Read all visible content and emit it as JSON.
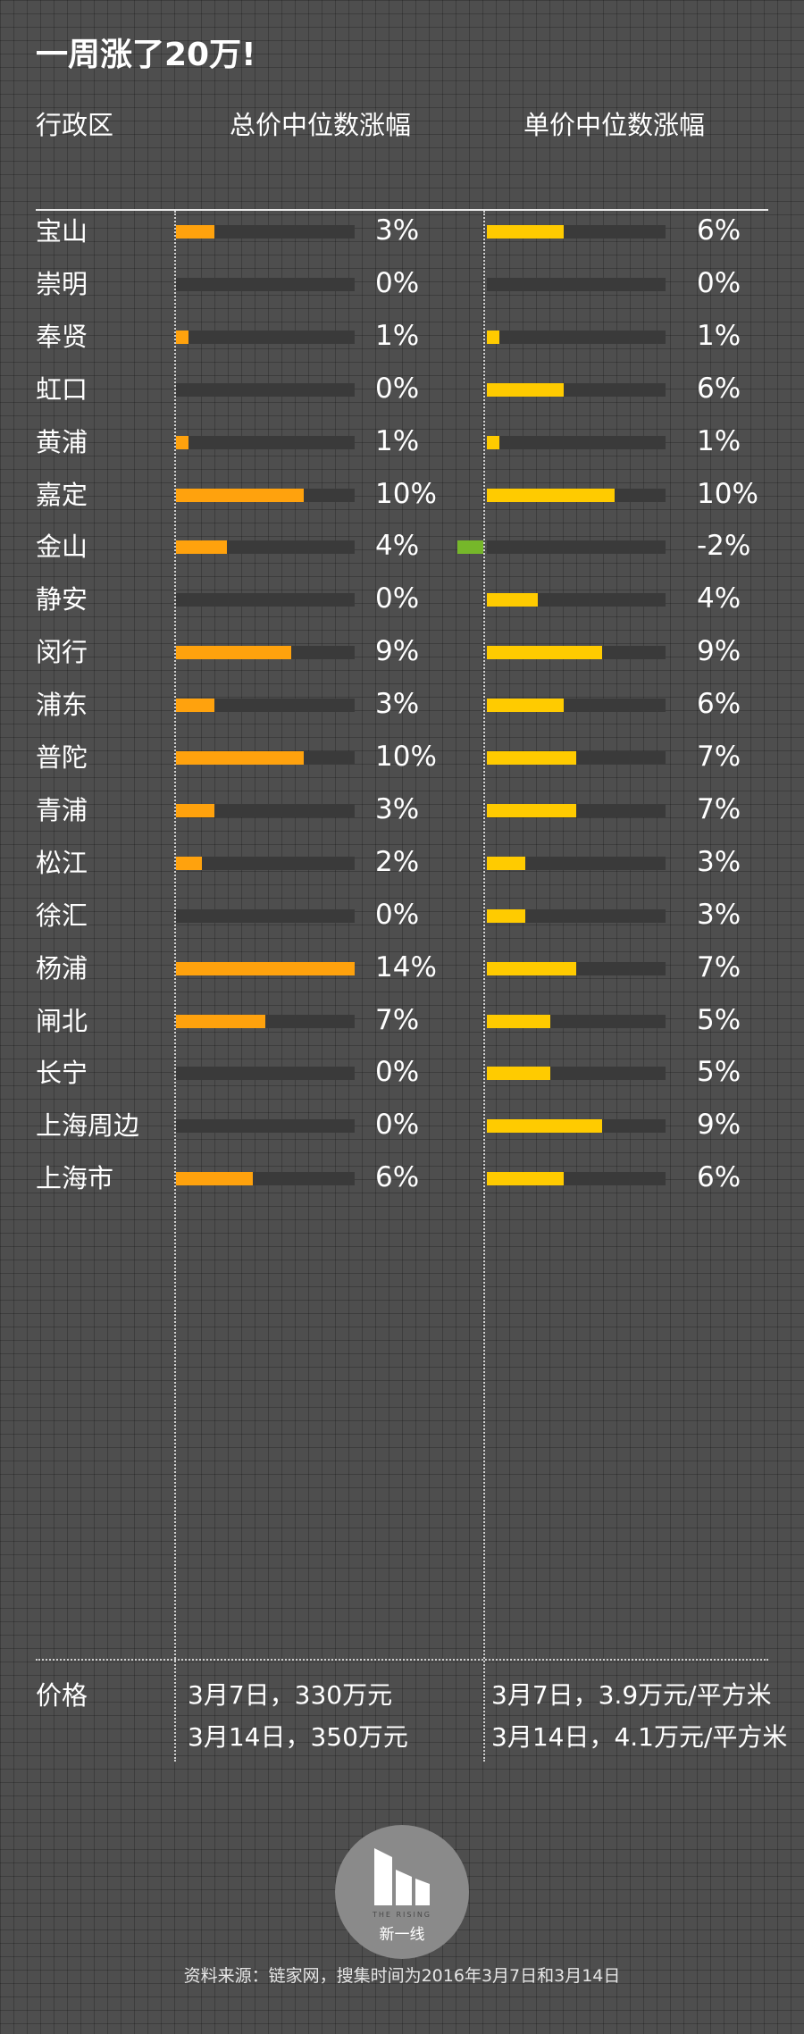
{
  "title": "一周涨了20万!",
  "headers": {
    "district": "行政区",
    "total": "总价中位数涨幅",
    "unit": "单价中位数涨幅"
  },
  "chart_data": {
    "type": "bar",
    "title": "一周涨了20万!",
    "categories": [
      "宝山",
      "崇明",
      "奉贤",
      "虹口",
      "黄浦",
      "嘉定",
      "金山",
      "静安",
      "闵行",
      "浦东",
      "普陀",
      "青浦",
      "松江",
      "徐汇",
      "杨浦",
      "闸北",
      "长宁",
      "上海周边",
      "上海市"
    ],
    "series": [
      {
        "name": "总价中位数涨幅",
        "color": "#ffa20d",
        "unit": "%",
        "values": [
          3,
          0,
          1,
          0,
          1,
          10,
          4,
          0,
          9,
          3,
          10,
          3,
          2,
          0,
          14,
          7,
          0,
          0,
          6
        ]
      },
      {
        "name": "单价中位数涨幅",
        "color": "#ffcb00",
        "negative_color": "#76b72a",
        "unit": "%",
        "values": [
          6,
          0,
          1,
          6,
          1,
          10,
          -2,
          4,
          9,
          6,
          7,
          7,
          3,
          3,
          7,
          5,
          5,
          9,
          6
        ]
      }
    ],
    "xlim": [
      -2,
      14
    ],
    "legend": "none",
    "grid": false
  },
  "price": {
    "label": "价格",
    "total": [
      "3月7日，330万元",
      "3月14日，350万元"
    ],
    "unit": [
      "3月7日，3.9万元/平方米",
      "3月14日，4.1万元/平方米"
    ]
  },
  "logo": {
    "en": "THE RISING",
    "cn": "新一线"
  },
  "source": "资料来源：链家网，搜集时间为2016年3月7日和3月14日"
}
